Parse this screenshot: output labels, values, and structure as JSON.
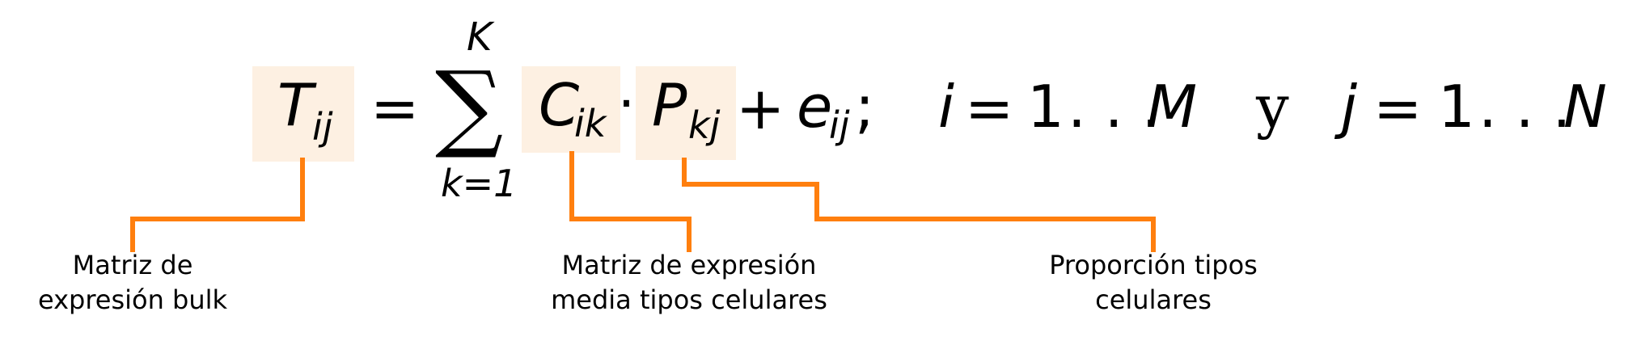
{
  "formula": {
    "lhs": {
      "symbol": "T",
      "subscript": "ij"
    },
    "equals": "=",
    "sum": {
      "sigma": "∑",
      "upper": "K",
      "lower": "k=1"
    },
    "term1": {
      "symbol": "C",
      "subscript": "ik"
    },
    "dot": "·",
    "term2": {
      "symbol": "P",
      "subscript": "kj"
    },
    "plus": "+",
    "error": {
      "symbol": "e",
      "subscript": "ij",
      "suffix": ";"
    },
    "range_i": {
      "var": "i",
      "eq": "=",
      "from": "1",
      "dots": ". . .",
      "to": "M"
    },
    "conjunction": "y",
    "range_j": {
      "var": "j",
      "eq": "=",
      "from": "1",
      "dots": ". . .",
      "to": "N"
    }
  },
  "annotations": [
    {
      "id": "bulk",
      "text": "Matriz de\nexpresión bulk"
    },
    {
      "id": "media",
      "text": "Matriz de expresión\nmedia tipos celulares"
    },
    {
      "id": "proporcion",
      "text": "Proporción tipos\ncelulares"
    }
  ],
  "colors": {
    "highlight": "#fdf0e2",
    "connector": "#ff7f0e",
    "text": "#000000"
  }
}
